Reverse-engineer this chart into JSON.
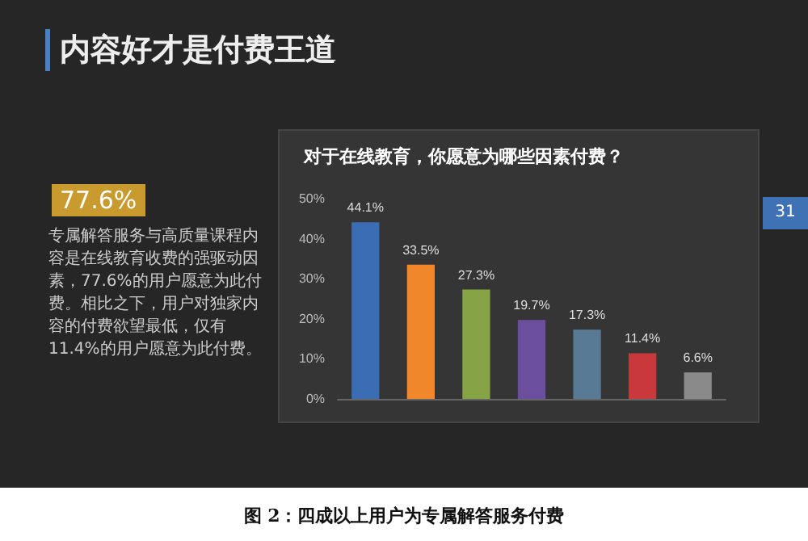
{
  "chart_data": {
    "type": "bar",
    "title": "对于在线教育，你愿意为哪些因素付费？",
    "categories": [
      null,
      null,
      null,
      null,
      null,
      null,
      null
    ],
    "series": [
      {
        "values": [
          44.1,
          33.5,
          27.3,
          19.7,
          17.3,
          11.4,
          6.6
        ],
        "colors": [
          "#3b6db5",
          "#f0872a",
          "#86a346",
          "#6b4f9e",
          "#587a95",
          "#c9393b",
          "#8a8a8a"
        ],
        "value_labels": [
          "44.1%",
          "33.5%",
          "27.3%",
          "19.7%",
          "17.3%",
          "11.4%",
          "6.6%"
        ]
      }
    ],
    "ylim": [
      0,
      50
    ],
    "yticks": [
      {
        "value": 0,
        "label": "0%"
      },
      {
        "value": 10,
        "label": "10%"
      },
      {
        "value": 20,
        "label": "20%"
      },
      {
        "value": 30,
        "label": "30%"
      },
      {
        "value": 40,
        "label": "40%"
      },
      {
        "value": 50,
        "label": "50%"
      }
    ],
    "grid": false,
    "annotations": [
      "内容好才是付费王道",
      "77.6%",
      "专属解答服务与高质量课程内容是在线教育收费的强驱动因素，77.6%的用户愿意为此付费。相比之下，用户对独家内容的付费欲望最低，仅有11.4%的用户愿意为此付费。",
      "31",
      "图 2：四成以上用户为专属解答服务付费"
    ]
  }
}
